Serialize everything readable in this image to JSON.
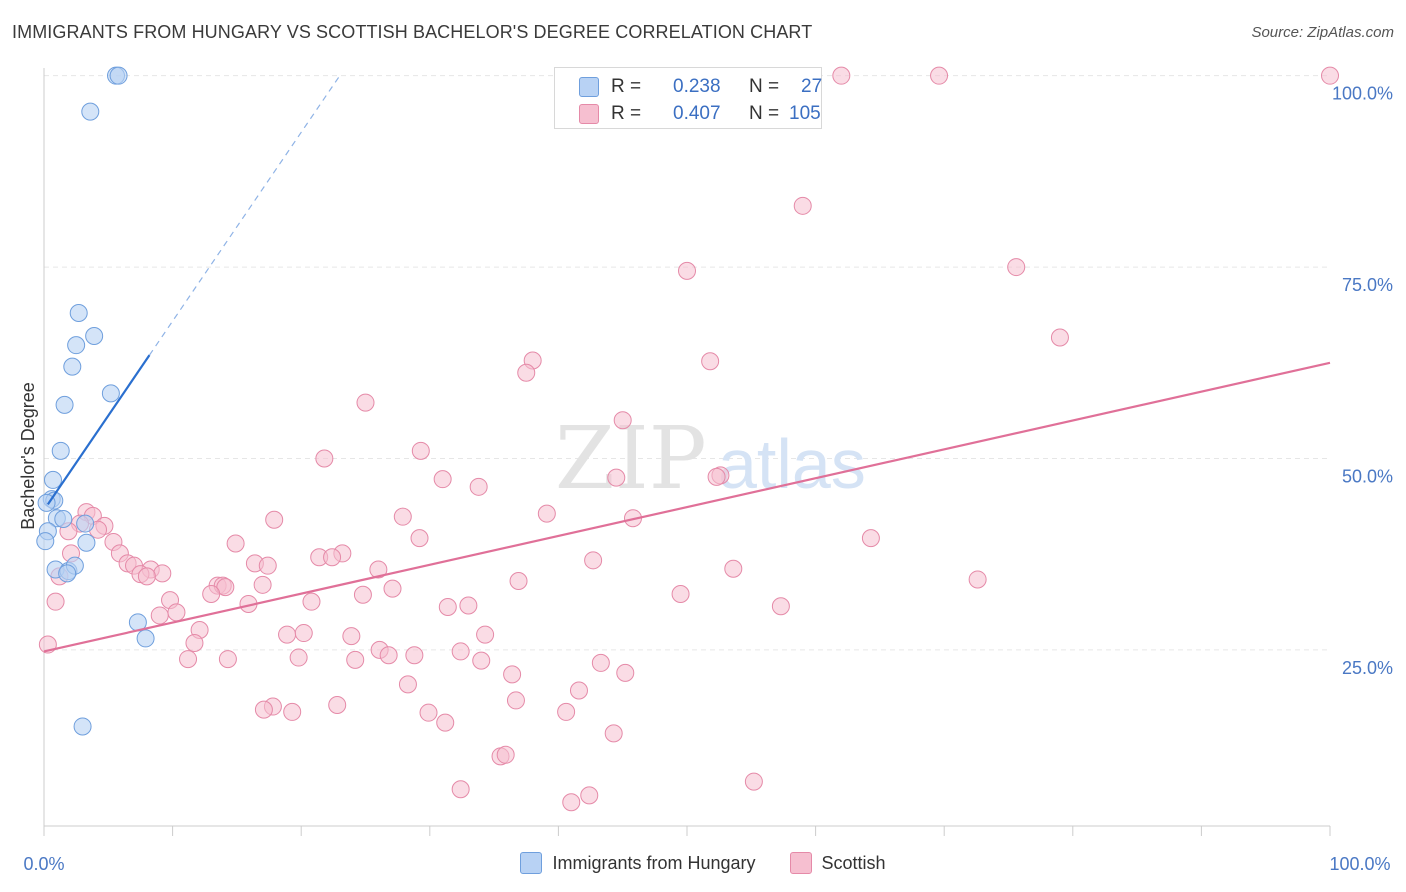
{
  "title": "IMMIGRANTS FROM HUNGARY VS SCOTTISH BACHELOR'S DEGREE CORRELATION CHART",
  "source": "Source: ZipAtlas.com",
  "watermark": {
    "zip": "ZIP",
    "atlas": "atlas"
  },
  "colors": {
    "blue_fill": "#b8d2f4",
    "blue_stroke": "#6f9fdd",
    "blue_line": "#2a6fcf",
    "pink_fill": "#f6bfd0",
    "pink_stroke": "#e58aa8",
    "pink_line": "#e07098",
    "axis_label": "#4a78c4",
    "grid": "#e6e6e6"
  },
  "stats": {
    "r_label": "R =",
    "n_label": "N =",
    "rows": [
      {
        "series": "Immigrants from Hungary",
        "r": "0.238",
        "n": "27"
      },
      {
        "series": "Scottish",
        "r": "0.407",
        "n": "105"
      }
    ]
  },
  "chart_data": {
    "type": "scatter",
    "ylabel": "Bachelor's Degree",
    "xlabel": "",
    "x_tick_labels": [
      "0.0%",
      "100.0%"
    ],
    "y_tick_labels": [
      "25.0%",
      "50.0%",
      "75.0%",
      "100.0%"
    ],
    "xlim": [
      0,
      100
    ],
    "ylim": [
      2,
      101
    ],
    "grid": true,
    "legend_placement": "bottom-center",
    "series": [
      {
        "name": "Immigrants from Hungary",
        "color": "#b8d2f4",
        "trend": {
          "x": [
            0.3,
            8.2
          ],
          "y": [
            44,
            63.5
          ],
          "dashed_to": [
            23,
            100
          ]
        },
        "points": [
          {
            "x": 5.6,
            "y": 100
          },
          {
            "x": 5.8,
            "y": 100
          },
          {
            "x": 3.6,
            "y": 95.3
          },
          {
            "x": 2.7,
            "y": 69
          },
          {
            "x": 3.9,
            "y": 66
          },
          {
            "x": 2.5,
            "y": 64.8
          },
          {
            "x": 2.2,
            "y": 62
          },
          {
            "x": 5.2,
            "y": 58.5
          },
          {
            "x": 1.6,
            "y": 57
          },
          {
            "x": 1.3,
            "y": 51
          },
          {
            "x": 0.7,
            "y": 47.2
          },
          {
            "x": 0.6,
            "y": 44.7
          },
          {
            "x": 0.8,
            "y": 44.5
          },
          {
            "x": 0.2,
            "y": 44.2
          },
          {
            "x": 1.0,
            "y": 42.2
          },
          {
            "x": 1.5,
            "y": 42.1
          },
          {
            "x": 3.2,
            "y": 41.5
          },
          {
            "x": 0.3,
            "y": 40.5
          },
          {
            "x": 3.3,
            "y": 39
          },
          {
            "x": 0.9,
            "y": 35.5
          },
          {
            "x": 1.9,
            "y": 35.3
          },
          {
            "x": 2.4,
            "y": 36
          },
          {
            "x": 1.8,
            "y": 35
          },
          {
            "x": 7.3,
            "y": 28.6
          },
          {
            "x": 7.9,
            "y": 26.5
          },
          {
            "x": 3.0,
            "y": 15
          },
          {
            "x": 0.1,
            "y": 39.2
          }
        ]
      },
      {
        "name": "Scottish",
        "color": "#f6bfd0",
        "trend": {
          "x": [
            0,
            100
          ],
          "y": [
            24.8,
            62.5
          ]
        },
        "points": [
          {
            "x": 62,
            "y": 100
          },
          {
            "x": 69.6,
            "y": 100
          },
          {
            "x": 100,
            "y": 100
          },
          {
            "x": 59,
            "y": 83
          },
          {
            "x": 50,
            "y": 74.5
          },
          {
            "x": 75.6,
            "y": 75
          },
          {
            "x": 79,
            "y": 65.8
          },
          {
            "x": 38,
            "y": 62.8
          },
          {
            "x": 37.5,
            "y": 61.2
          },
          {
            "x": 51.8,
            "y": 62.7
          },
          {
            "x": 25,
            "y": 57.3
          },
          {
            "x": 45,
            "y": 55
          },
          {
            "x": 29.3,
            "y": 51
          },
          {
            "x": 21.8,
            "y": 50
          },
          {
            "x": 31,
            "y": 47.3
          },
          {
            "x": 33.8,
            "y": 46.3
          },
          {
            "x": 44.5,
            "y": 47.5
          },
          {
            "x": 52.6,
            "y": 47.8
          },
          {
            "x": 52.3,
            "y": 47.6
          },
          {
            "x": 39.1,
            "y": 42.8
          },
          {
            "x": 27.9,
            "y": 42.4
          },
          {
            "x": 17.9,
            "y": 42
          },
          {
            "x": 45.8,
            "y": 42.2
          },
          {
            "x": 3.3,
            "y": 43
          },
          {
            "x": 3.8,
            "y": 42.5
          },
          {
            "x": 2.8,
            "y": 41.5
          },
          {
            "x": 4.7,
            "y": 41.2
          },
          {
            "x": 1.9,
            "y": 40.5
          },
          {
            "x": 4.2,
            "y": 40.7
          },
          {
            "x": 29.2,
            "y": 39.6
          },
          {
            "x": 64.3,
            "y": 39.6
          },
          {
            "x": 5.4,
            "y": 39.1
          },
          {
            "x": 14.9,
            "y": 38.9
          },
          {
            "x": 2.1,
            "y": 37.6
          },
          {
            "x": 5.9,
            "y": 37.6
          },
          {
            "x": 23.2,
            "y": 37.6
          },
          {
            "x": 21.4,
            "y": 37.1
          },
          {
            "x": 22.4,
            "y": 37.1
          },
          {
            "x": 42.7,
            "y": 36.7
          },
          {
            "x": 6.5,
            "y": 36.3
          },
          {
            "x": 7.0,
            "y": 36
          },
          {
            "x": 16.4,
            "y": 36.3
          },
          {
            "x": 17.4,
            "y": 36
          },
          {
            "x": 26,
            "y": 35.5
          },
          {
            "x": 53.6,
            "y": 35.6
          },
          {
            "x": 8.3,
            "y": 35.5
          },
          {
            "x": 9.2,
            "y": 35
          },
          {
            "x": 7.5,
            "y": 34.9
          },
          {
            "x": 8.0,
            "y": 34.6
          },
          {
            "x": 1.2,
            "y": 34.6
          },
          {
            "x": 36.9,
            "y": 34
          },
          {
            "x": 72.6,
            "y": 34.2
          },
          {
            "x": 13.5,
            "y": 33.4
          },
          {
            "x": 13.9,
            "y": 33.4
          },
          {
            "x": 14.1,
            "y": 33.2
          },
          {
            "x": 17,
            "y": 33.5
          },
          {
            "x": 27.1,
            "y": 33
          },
          {
            "x": 13.0,
            "y": 32.3
          },
          {
            "x": 24.8,
            "y": 32.2
          },
          {
            "x": 49.5,
            "y": 32.3
          },
          {
            "x": 0.9,
            "y": 31.3
          },
          {
            "x": 9.8,
            "y": 31.5
          },
          {
            "x": 20.8,
            "y": 31.3
          },
          {
            "x": 15.9,
            "y": 31
          },
          {
            "x": 31.4,
            "y": 30.6
          },
          {
            "x": 33,
            "y": 30.8
          },
          {
            "x": 57.3,
            "y": 30.7
          },
          {
            "x": 10.3,
            "y": 29.9
          },
          {
            "x": 9.0,
            "y": 29.5
          },
          {
            "x": 12.1,
            "y": 27.6
          },
          {
            "x": 18.9,
            "y": 27
          },
          {
            "x": 20.2,
            "y": 27.2
          },
          {
            "x": 23.9,
            "y": 26.8
          },
          {
            "x": 34.3,
            "y": 27
          },
          {
            "x": 11.7,
            "y": 25.9
          },
          {
            "x": 0.3,
            "y": 25.7
          },
          {
            "x": 26.1,
            "y": 25
          },
          {
            "x": 32.4,
            "y": 24.8
          },
          {
            "x": 11.2,
            "y": 23.8
          },
          {
            "x": 14.3,
            "y": 23.8
          },
          {
            "x": 19.8,
            "y": 24
          },
          {
            "x": 24.2,
            "y": 23.7
          },
          {
            "x": 26.8,
            "y": 24.3
          },
          {
            "x": 28.8,
            "y": 24.3
          },
          {
            "x": 34,
            "y": 23.6
          },
          {
            "x": 43.3,
            "y": 23.3
          },
          {
            "x": 36.4,
            "y": 21.8
          },
          {
            "x": 45.2,
            "y": 22
          },
          {
            "x": 28.3,
            "y": 20.5
          },
          {
            "x": 41.6,
            "y": 19.7
          },
          {
            "x": 36.7,
            "y": 18.4
          },
          {
            "x": 22.8,
            "y": 17.8
          },
          {
            "x": 17.8,
            "y": 17.6
          },
          {
            "x": 17.1,
            "y": 17.2
          },
          {
            "x": 19.3,
            "y": 16.9
          },
          {
            "x": 29.9,
            "y": 16.8
          },
          {
            "x": 40.6,
            "y": 16.9
          },
          {
            "x": 31.2,
            "y": 15.5
          },
          {
            "x": 44.3,
            "y": 14.1
          },
          {
            "x": 35.5,
            "y": 11.1
          },
          {
            "x": 35.9,
            "y": 11.3
          },
          {
            "x": 55.2,
            "y": 7.8
          },
          {
            "x": 32.4,
            "y": 6.8
          },
          {
            "x": 42.4,
            "y": 6
          },
          {
            "x": 41,
            "y": 5.1
          }
        ]
      }
    ]
  }
}
